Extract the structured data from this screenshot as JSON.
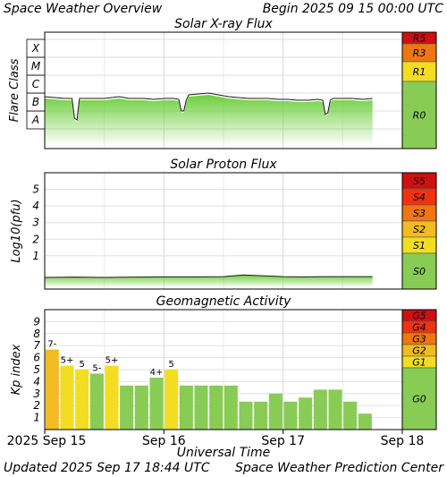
{
  "header": {
    "title": "Space Weather Overview",
    "begin": "Begin 2025 09 15 00:00 UTC"
  },
  "footer": {
    "updated": "Updated 2025 Sep 17 18:44 UTC",
    "source": "Space Weather Prediction Center"
  },
  "chart_data": [
    {
      "type": "area",
      "title": "Solar X-ray Flux",
      "ylabel": "Flare Class",
      "y_categories": [
        "A",
        "B",
        "C",
        "M",
        "X"
      ],
      "ylim_log_wm2": [
        -8,
        -3
      ],
      "x_range_hours": [
        0,
        72
      ],
      "series": [
        {
          "x_hours": [
            0,
            2,
            4,
            5.5,
            6,
            6.5,
            7,
            9,
            12,
            15,
            17,
            18,
            20,
            22,
            24,
            26,
            27,
            27.5,
            28,
            28.5,
            29,
            31,
            33,
            35,
            37,
            39,
            41,
            43,
            45,
            47,
            49,
            51,
            53,
            55,
            56,
            56.5,
            57,
            57.5,
            58,
            60,
            62,
            64,
            66
          ],
          "log_flux": [
            -6.2,
            -6.25,
            -6.3,
            -6.3,
            -7.4,
            -7.5,
            -6.3,
            -6.3,
            -6.3,
            -6.2,
            -6.3,
            -6.3,
            -6.3,
            -6.35,
            -6.3,
            -6.3,
            -6.35,
            -7.0,
            -7.0,
            -6.4,
            -6.1,
            -6.05,
            -6.0,
            -6.1,
            -6.2,
            -6.25,
            -6.3,
            -6.3,
            -6.3,
            -6.35,
            -6.35,
            -6.4,
            -6.4,
            -6.35,
            -6.4,
            -7.2,
            -7.1,
            -6.4,
            -6.3,
            -6.3,
            -6.3,
            -6.35,
            -6.3
          ]
        }
      ],
      "scale": [
        {
          "label": "R5",
          "color": "#cc1111"
        },
        {
          "label": "R3",
          "color": "#ee7711"
        },
        {
          "label": "R1",
          "color": "#f2dd22"
        },
        {
          "label": "R0",
          "color": "#88cc55"
        }
      ]
    },
    {
      "type": "area",
      "title": "Solar Proton Flux",
      "ylabel": "Log10(pfu)",
      "ylim": [
        -1,
        6
      ],
      "yticks": [
        "1",
        "2",
        "3",
        "4",
        "5"
      ],
      "x_range_hours": [
        0,
        72
      ],
      "series": [
        {
          "x_hours": [
            0,
            6,
            12,
            18,
            24,
            30,
            36,
            40,
            44,
            48,
            52,
            56,
            60,
            64,
            66
          ],
          "log_pfu": [
            -0.3,
            -0.28,
            -0.3,
            -0.28,
            -0.27,
            -0.27,
            -0.25,
            -0.15,
            -0.2,
            -0.25,
            -0.27,
            -0.25,
            -0.25,
            -0.25,
            -0.25
          ]
        }
      ],
      "scale": [
        {
          "label": "S5",
          "color": "#cc1111"
        },
        {
          "label": "S4",
          "color": "#ee3311"
        },
        {
          "label": "S3",
          "color": "#ee7711"
        },
        {
          "label": "S2",
          "color": "#f2bb22"
        },
        {
          "label": "S1",
          "color": "#f2dd22"
        },
        {
          "label": "S0",
          "color": "#88cc55"
        }
      ]
    },
    {
      "type": "bar",
      "title": "Geomagnetic Activity",
      "ylabel": "Kp index",
      "ylim": [
        0,
        10
      ],
      "yticks": [
        "1",
        "2",
        "3",
        "4",
        "5",
        "6",
        "7",
        "8",
        "9"
      ],
      "xlabel": "Universal Time",
      "x_ticks": [
        "2025 Sep 15",
        "Sep 16",
        "Sep 17",
        "Sep 18"
      ],
      "values": [
        6.67,
        5.33,
        5.0,
        4.67,
        5.33,
        3.67,
        3.67,
        4.33,
        5.0,
        3.67,
        3.67,
        3.67,
        3.67,
        2.33,
        2.33,
        3.0,
        2.33,
        2.67,
        3.33,
        3.33,
        2.33,
        1.33
      ],
      "bar_labels": [
        "7-",
        "5+",
        "5",
        "5-",
        "5+",
        "",
        "",
        "4+",
        "5",
        "",
        "",
        "",
        "",
        "",
        "",
        "",
        "",
        "",
        "",
        "",
        "",
        ""
      ],
      "colors": [
        "#f2bb22",
        "#f2dd22",
        "#f2dd22",
        "#88cc55",
        "#f2dd22",
        "#88cc55",
        "#88cc55",
        "#88cc55",
        "#f2dd22",
        "#88cc55",
        "#88cc55",
        "#88cc55",
        "#88cc55",
        "#88cc55",
        "#88cc55",
        "#88cc55",
        "#88cc55",
        "#88cc55",
        "#88cc55",
        "#88cc55",
        "#88cc55",
        "#88cc55"
      ],
      "scale": [
        {
          "label": "G5",
          "color": "#cc1111"
        },
        {
          "label": "G4",
          "color": "#ee3311"
        },
        {
          "label": "G3",
          "color": "#ee7711"
        },
        {
          "label": "G2",
          "color": "#f2bb22"
        },
        {
          "label": "G1",
          "color": "#f2dd22"
        },
        {
          "label": "G0",
          "color": "#88cc55"
        }
      ]
    }
  ]
}
